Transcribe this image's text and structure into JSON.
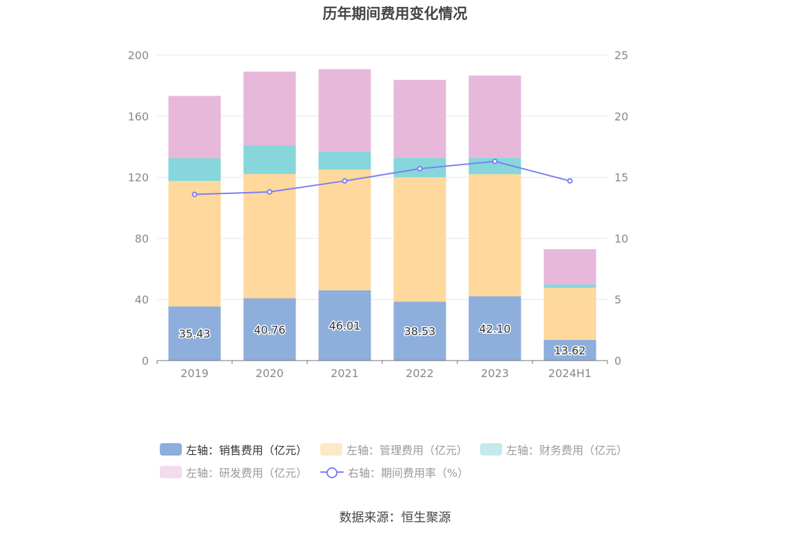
{
  "chart_data": {
    "type": "bar",
    "title": "历年期间费用变化情况",
    "categories": [
      "2019",
      "2020",
      "2021",
      "2022",
      "2023",
      "2024H1"
    ],
    "series": [
      {
        "name": "左轴：销售费用（亿元）",
        "axis": "left",
        "type": "bar",
        "color": "#8eaedc",
        "values": [
          35.43,
          40.76,
          46.01,
          38.53,
          42.1,
          13.62
        ],
        "labels": [
          "35.43",
          "40.76",
          "46.01",
          "38.53",
          "42.10",
          "13.62"
        ]
      },
      {
        "name": "左轴：管理费用（亿元）",
        "axis": "left",
        "type": "bar",
        "color": "#fed89c",
        "values": [
          82.2,
          81.4,
          79.0,
          81.5,
          79.9,
          34.0
        ]
      },
      {
        "name": "左轴：财务费用（亿元）",
        "axis": "left",
        "type": "bar",
        "color": "#86d6dc",
        "values": [
          14.8,
          18.6,
          11.5,
          12.7,
          10.8,
          2.2
        ]
      },
      {
        "name": "左轴：研发费用（亿元）",
        "axis": "left",
        "type": "bar",
        "color": "#e7b8da",
        "values": [
          40.8,
          48.4,
          54.3,
          51.0,
          53.8,
          23.1
        ]
      },
      {
        "name": "右轴：期间费用率（%）",
        "axis": "right",
        "type": "line",
        "color": "#7b7ff0",
        "values": [
          13.6,
          13.8,
          14.7,
          15.7,
          16.3,
          14.7
        ]
      }
    ],
    "y_left": {
      "min": 0,
      "max": 200,
      "ticks": [
        "0",
        "40",
        "80",
        "120",
        "160",
        "200"
      ]
    },
    "y_right": {
      "min": 0,
      "max": 25,
      "ticks": [
        "0",
        "5",
        "10",
        "15",
        "20",
        "25"
      ]
    },
    "grid": true,
    "legend_position": "bottom"
  },
  "colors": {
    "grid": "#e3e6ee",
    "axis": "#6e7079",
    "tick_text": "#888888"
  },
  "source": "数据来源：恒生聚源"
}
